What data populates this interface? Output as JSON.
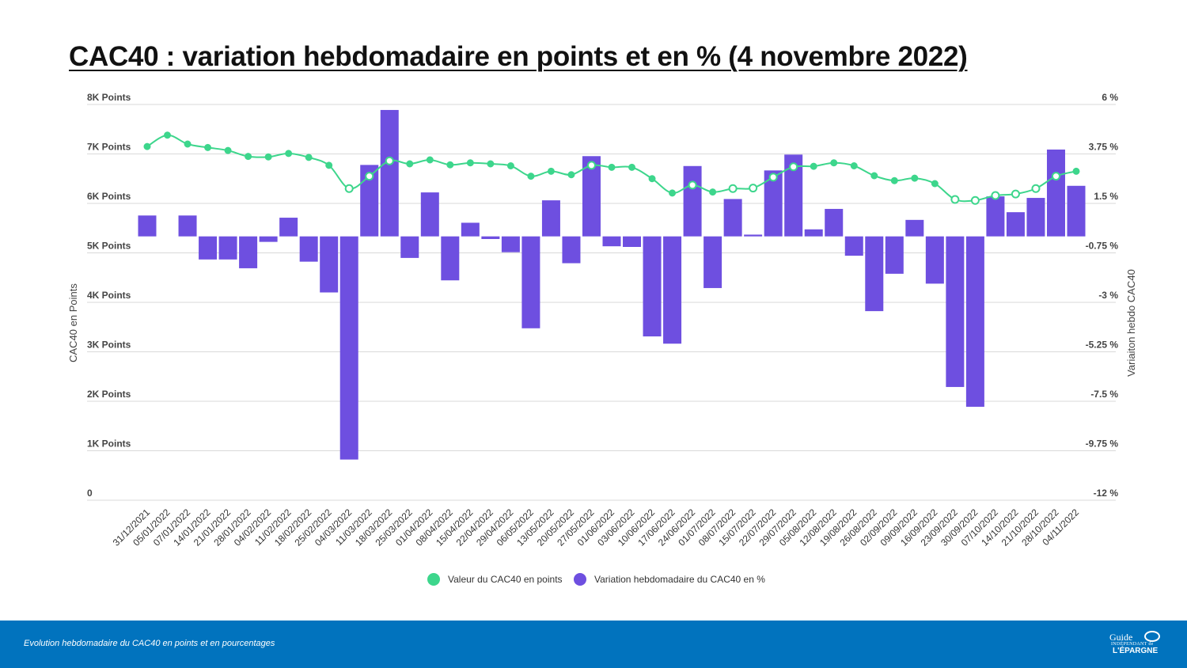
{
  "chart_data": {
    "type": "bar",
    "title": "CAC40 : variation hebdomadaire en points et en % (4 novembre 2022)",
    "ylabel_left": "CAC40 en Points",
    "ylabel_right": "Variaiton hebdo CAC40",
    "y_left": {
      "min": 0,
      "max": 8000,
      "ticks": [
        "0",
        "1K Points",
        "2K Points",
        "3K Points",
        "4K Points",
        "5K Points",
        "6K Points",
        "7K Points",
        "8K Points"
      ]
    },
    "y_right": {
      "min": -12,
      "max": 6,
      "ticks": [
        "-12 %",
        "-9.75 %",
        "-7.5 %",
        "-5.25 %",
        "-3 %",
        "-0.75 %",
        "1.5 %",
        "3.75 %",
        "6 %"
      ]
    },
    "categories": [
      "31/12/2021",
      "05/01/2022",
      "07/01/2022",
      "14/01/2022",
      "21/01/2022",
      "28/01/2022",
      "04/02/2022",
      "11/02/2022",
      "18/02/2022",
      "25/02/2022",
      "04/03/2022",
      "11/03/2022",
      "18/03/2022",
      "25/03/2022",
      "01/04/2022",
      "08/04/2022",
      "15/04/2022",
      "22/04/2022",
      "29/04/2022",
      "06/05/2022",
      "13/05/2022",
      "20/05/2022",
      "27/05/2022",
      "01/06/2022",
      "03/06/2022",
      "10/06/2022",
      "17/06/2022",
      "24/06/2022",
      "01/07/2022",
      "08/07/2022",
      "15/07/2022",
      "22/07/2022",
      "29/07/2022",
      "05/08/2022",
      "12/08/2022",
      "19/08/2022",
      "26/08/2022",
      "02/09/2022",
      "09/09/2022",
      "16/09/2022",
      "23/09/2022",
      "30/09/2022",
      "07/10/2022",
      "14/10/2022",
      "21/10/2022",
      "28/10/2022",
      "04/11/2022"
    ],
    "series": [
      {
        "name": "Valeur du CAC40 en points",
        "axis": "left",
        "type": "line",
        "color": "#3dd68c",
        "values": [
          7150,
          7380,
          7200,
          7130,
          7070,
          6950,
          6940,
          7010,
          6930,
          6770,
          6300,
          6550,
          6860,
          6800,
          6880,
          6780,
          6820,
          6800,
          6760,
          6550,
          6650,
          6580,
          6770,
          6730,
          6730,
          6500,
          6210,
          6370,
          6230,
          6300,
          6310,
          6530,
          6740,
          6750,
          6820,
          6760,
          6560,
          6460,
          6510,
          6400,
          6080,
          6060,
          6160,
          6190,
          6300,
          6550,
          6650
        ],
        "hollow_markers": [
          false,
          false,
          false,
          false,
          false,
          false,
          false,
          false,
          false,
          false,
          true,
          true,
          true,
          false,
          false,
          false,
          false,
          false,
          false,
          false,
          false,
          false,
          true,
          false,
          false,
          false,
          false,
          true,
          false,
          true,
          true,
          true,
          true,
          false,
          false,
          false,
          false,
          false,
          false,
          false,
          true,
          true,
          true,
          true,
          true,
          true,
          false
        ]
      },
      {
        "name": "Variation hebdomadaire du CAC40 en %",
        "axis": "right",
        "type": "bar",
        "color": "#6e4fe0",
        "values": [
          0.95,
          0,
          0.95,
          -1.05,
          -1.05,
          -1.45,
          -0.25,
          0.85,
          -1.15,
          -2.55,
          -10.15,
          3.25,
          5.75,
          -0.98,
          2.0,
          -2.0,
          0.62,
          -0.12,
          -0.72,
          -4.18,
          1.64,
          -1.22,
          3.65,
          -0.45,
          -0.48,
          -4.55,
          -4.88,
          3.2,
          -2.35,
          1.7,
          0.08,
          3.0,
          3.72,
          0.32,
          1.25,
          -0.88,
          -3.4,
          -1.7,
          0.75,
          -2.15,
          -6.85,
          -7.75,
          1.82,
          1.1,
          1.75,
          3.95,
          2.3
        ]
      }
    ],
    "legend_position": "bottom-center",
    "grid": true
  },
  "footer": {
    "caption": "Evolution hebdomadaire du CAC40 en points et en pourcentages",
    "logo_text": "Guide INDÉPENDANT de L'ÉPARGNE",
    "logo_top": "Guide",
    "logo_mid": "INDÉPENDANT de",
    "logo_bottom": "L'ÉPARGNE"
  },
  "colors": {
    "footer_bg": "#0173be",
    "line": "#3dd68c",
    "bar": "#6e4fe0"
  }
}
